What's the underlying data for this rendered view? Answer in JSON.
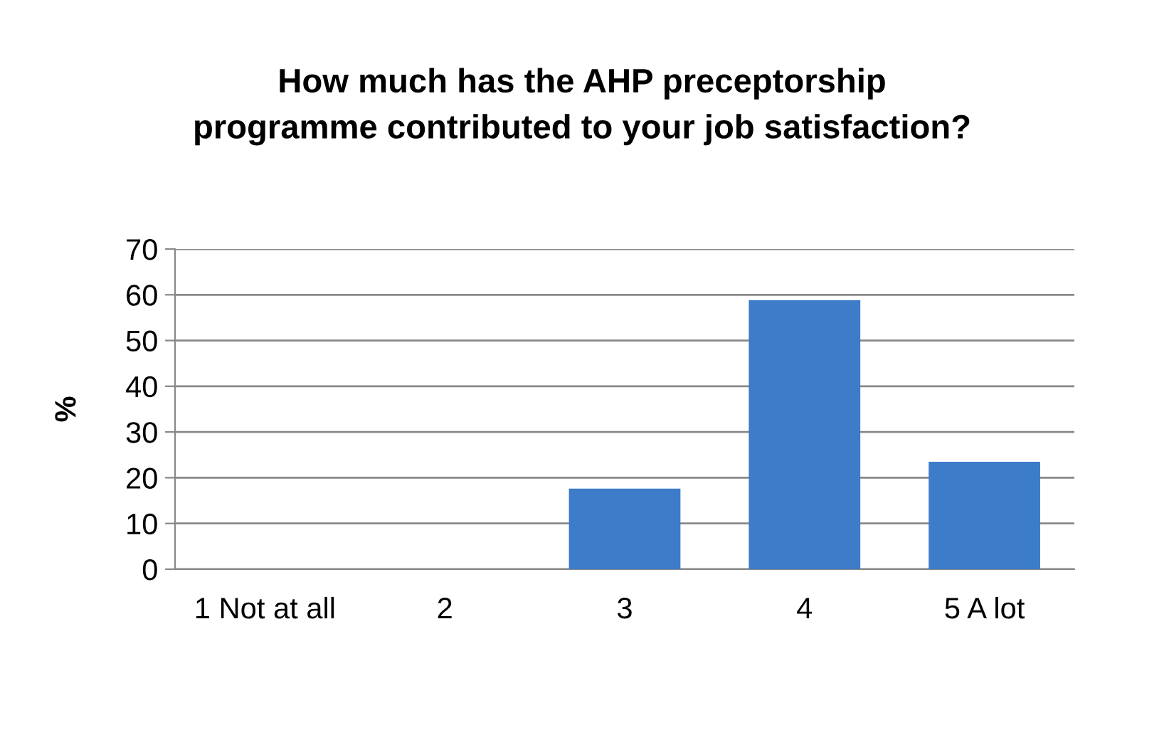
{
  "chart_data": {
    "type": "bar",
    "title": "How much has the AHP preceptorship\nprogramme contributed to your job satisfaction?",
    "ylabel": "%",
    "categories": [
      "1 Not at all",
      "2",
      "3",
      "4",
      "5 A lot"
    ],
    "values": [
      0,
      0,
      17.6,
      58.8,
      23.5
    ],
    "color": "#3d7cc9",
    "ylim": [
      0,
      70
    ],
    "yticks": [
      0,
      10,
      20,
      30,
      40,
      50,
      60,
      70
    ],
    "grid": "y"
  }
}
